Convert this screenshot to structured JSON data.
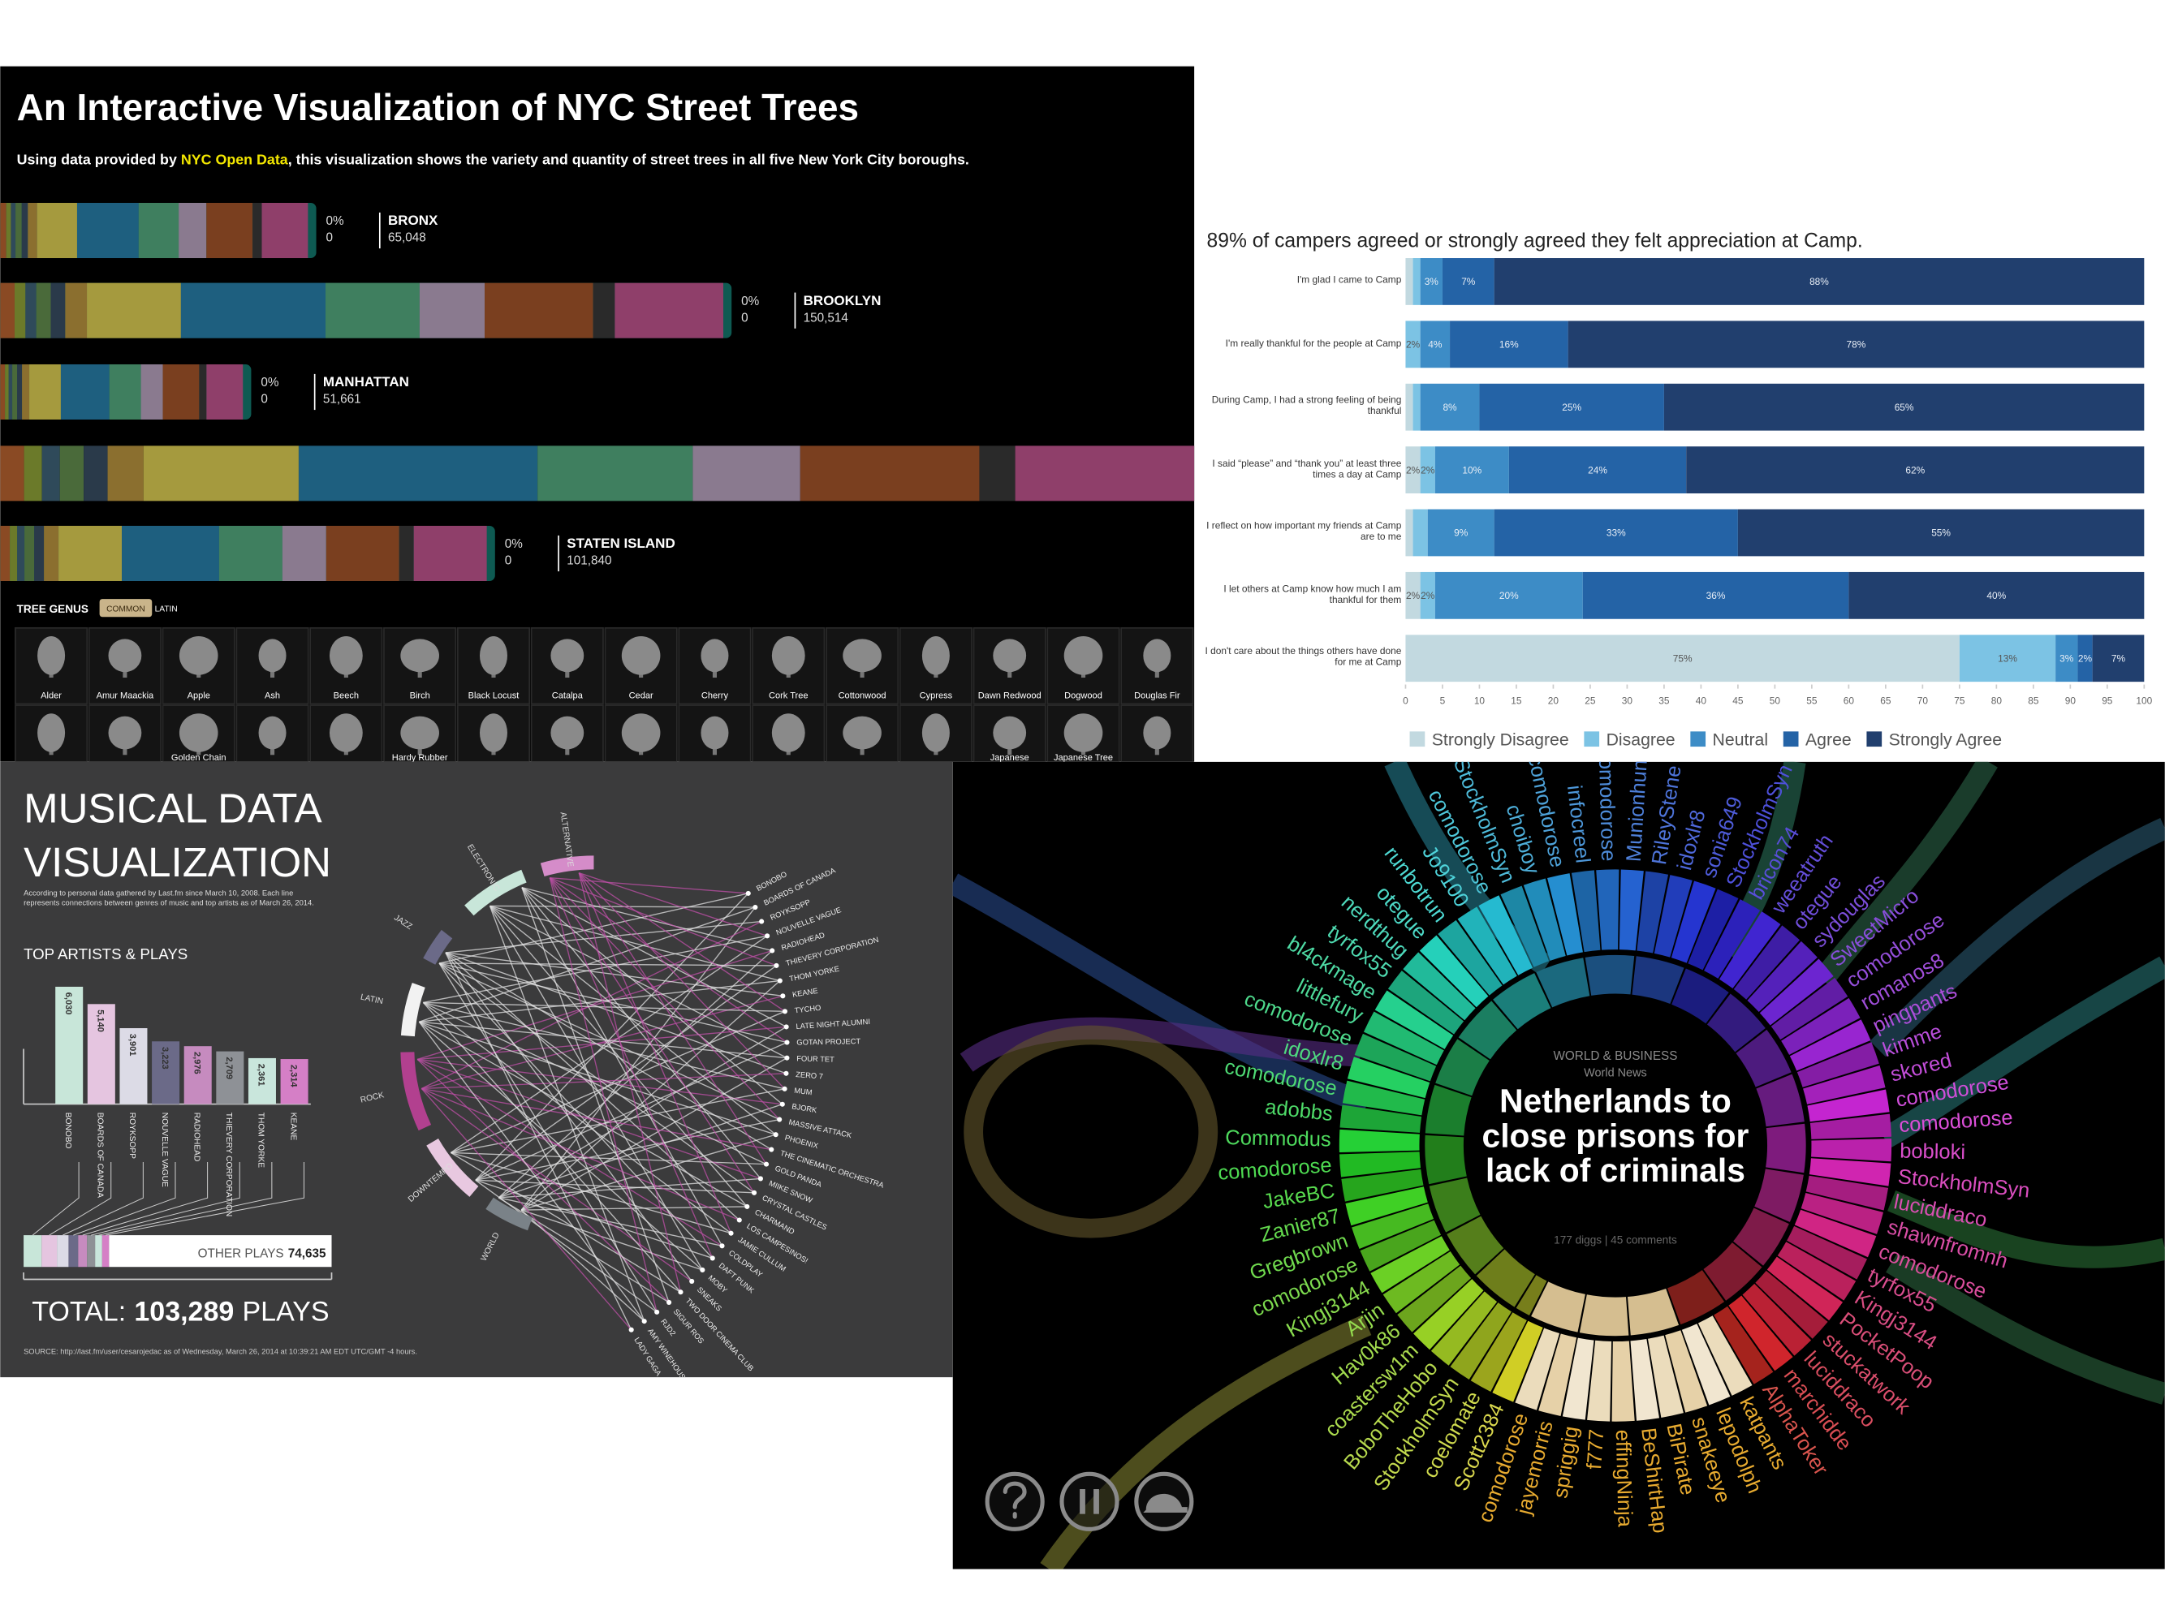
{
  "chart_data": [
    {
      "type": "bar",
      "title": "An Interactive Visualization of NYC Street Trees",
      "subtitle_before": "Using data provided by ",
      "subtitle_link": "NYC Open Data",
      "subtitle_after": ", this visualization shows the variety and quantity of street trees in all five New York City boroughs.",
      "categories": [
        "BRONX",
        "BROOKLYN",
        "MANHATTAN",
        null,
        "STATEN ISLAND"
      ],
      "values": [
        65048,
        150514,
        51661,
        null,
        101840
      ],
      "value_labels": [
        "65,048",
        "150,514",
        "51,661",
        null,
        "101,840"
      ],
      "selected_share": [
        0,
        0,
        0,
        null,
        0
      ],
      "selected_share_labels": [
        "0%",
        "0%",
        "0%",
        null,
        "0%"
      ],
      "selected_count": [
        0,
        0,
        0,
        null,
        0
      ],
      "legend_title": "TREE GENUS",
      "toggle": [
        "COMMON",
        "LATIN"
      ],
      "genera": [
        "Alder",
        "Amur Maackia",
        "Apple",
        "Ash",
        "Beech",
        "Birch",
        "Black Locust",
        "Catalpa",
        "Cedar",
        "Cherry",
        "Cork Tree",
        "Cottonwood",
        "Cypress",
        "Dawn Redwood",
        "Dogwood",
        "Douglas Fir"
      ],
      "genera_row2": [
        null,
        null,
        "Golden Chain",
        null,
        null,
        "Hardy Rubber",
        null,
        null,
        null,
        null,
        null,
        null,
        null,
        "Japanese",
        "Japanese Tree",
        null
      ]
    },
    {
      "type": "stacked-bar",
      "title": "89% of campers agreed or strongly agreed they felt appreciation at Camp.",
      "categories": [
        "I'm glad I came to Camp",
        "I'm really thankful for the people at Camp",
        "During Camp, I had a strong feeling of being thankful",
        "I said “please” and “thank you” at least three times a day at Camp",
        "I reflect on how important my friends at Camp are to me",
        "I let others at Camp know how much I am thankful for them",
        "I don't care about the things others have done for me at Camp"
      ],
      "series": [
        {
          "name": "Strongly Disagree",
          "color": "#c2d9e0",
          "values": [
            1,
            0,
            1,
            2,
            1,
            2,
            75
          ],
          "value_labels": [
            null,
            null,
            null,
            "2%",
            null,
            "2%",
            "75%"
          ]
        },
        {
          "name": "Disagree",
          "color": "#7cc3e4",
          "values": [
            1,
            2,
            1,
            2,
            2,
            2,
            13
          ],
          "value_labels": [
            null,
            "2%",
            null,
            "2%",
            null,
            "2%",
            "13%"
          ]
        },
        {
          "name": "Neutral",
          "color": "#3d8cc6",
          "values": [
            3,
            4,
            8,
            10,
            9,
            20,
            3
          ],
          "value_labels": [
            "3%",
            "4%",
            "8%",
            "10%",
            "9%",
            "20%",
            "3%"
          ]
        },
        {
          "name": "Agree",
          "color": "#2463a6",
          "values": [
            7,
            16,
            25,
            24,
            33,
            36,
            2
          ],
          "value_labels": [
            "7%",
            "16%",
            "25%",
            "24%",
            "33%",
            "36%",
            "2%"
          ]
        },
        {
          "name": "Strongly Agree",
          "color": "#213f6e",
          "values": [
            88,
            78,
            65,
            62,
            55,
            40,
            7
          ],
          "value_labels": [
            "88%",
            "78%",
            "65%",
            "62%",
            "55%",
            "40%",
            "7%"
          ]
        }
      ],
      "xlim": [
        0,
        100
      ],
      "xticks": [
        0,
        5,
        10,
        15,
        20,
        25,
        30,
        35,
        40,
        45,
        50,
        55,
        60,
        65,
        70,
        75,
        80,
        85,
        90,
        95,
        100
      ],
      "grid": false
    },
    {
      "type": "column",
      "title_lines": [
        "MUSICAL DATA",
        "VISUALIZATION"
      ],
      "note": "According to personal data gathered by Last.fm since March 10, 2008. Each line represents connections between genres of music and top artists as of March 26, 2014.",
      "subtitle": "TOP ARTISTS & PLAYS",
      "categories": [
        "BONOBO",
        "BOARDS OF CANADA",
        "ROYKSOPP",
        "NOUVELLE VAGUE",
        "RADIOHEAD",
        "THIEVERY CORPORATION",
        "THOM YORKE",
        "KEANE"
      ],
      "values": [
        6030,
        5140,
        3901,
        3223,
        2976,
        2709,
        2361,
        2314
      ],
      "value_labels": [
        "6,030",
        "5,140",
        "3,901",
        "3,223",
        "2,976",
        "2,709",
        "2,361",
        "2,314"
      ],
      "colors": [
        "#c8e6d9",
        "#e5c5e0",
        "#dcdbe6",
        "#6b6a88",
        "#c68bbf",
        "#8e9196",
        "#c9e6dc",
        "#d57fc6"
      ],
      "other_label": "OTHER PLAYS",
      "other_value": 74635,
      "other_value_label": "74,635",
      "total_prefix": "TOTAL:",
      "total_value": 103289,
      "total_value_label": "103,289",
      "total_suffix": "PLAYS",
      "source": "SOURCE: http://last.fm/user/cesarojedac as of Wednesday, March 26, 2014 at 10:39:21 AM EDT UTC/GMT -4 hours.",
      "genres": [
        {
          "name": "ALTERNATIVE",
          "color": "#d58cc9"
        },
        {
          "name": "ELECTRONIC",
          "color": "#c8e6d9"
        },
        {
          "name": "JAZZ",
          "color": "#6b6a88"
        },
        {
          "name": "LATIN",
          "color": "#f2f2f2"
        },
        {
          "name": "ROCK",
          "color": "#b2408f"
        },
        {
          "name": "DOWNTEMPO",
          "color": "#e8c8e0"
        },
        {
          "name": "WORLD",
          "color": "#7a8288"
        }
      ],
      "artists": [
        "BONOBO",
        "BOARDS OF CANADA",
        "ROYKSOPP",
        "NOUVELLE VAGUE",
        "RADIOHEAD",
        "THIEVERY CORPORATION",
        "THOM YORKE",
        "KEANE",
        "TYCHO",
        "LATE NIGHT ALUMNI",
        "GOTAN PROJECT",
        "FOUR TET",
        "ZERO 7",
        "MUM",
        "BJORK",
        "MASSIVE ATTACK",
        "PHOENIX",
        "THE CINEMATIC ORCHESTRA",
        "GOLD PANDA",
        "MIIKE SNOW",
        "CRYSTAL CASTLES",
        "CHARMAND",
        "LOS CAMPESINOS!",
        "JAMIE CULLUM",
        "COLDPLAY",
        "DAFT PUNK",
        "MOBY",
        "SNEAKS",
        "TWO DOOR CINEMA CLUB",
        "SIGUR ROS",
        "RJD2",
        "AMY WINEHOUSE",
        "LADY GAGA"
      ]
    }
  ],
  "digg": {
    "category": "WORLD & BUSINESS",
    "subcategory": "World News",
    "headline": "Netherlands to close prisons for lack of criminals",
    "stats": "177 diggs | 45 comments",
    "users": [
      "StockholmSyn",
      "BoboTheHobo",
      "coastersw1m",
      "Hav0k86",
      "Arjin",
      "Kingj3144",
      "comodorose",
      "Gregbrown",
      "Zanier87",
      "JakeBC",
      "comodorose",
      "Commodus",
      "adobbs",
      "comodorose",
      "idoxlr8",
      "comodorose",
      "littlefury",
      "bl4ckmage",
      "tyrfox55",
      "nerdthug",
      "otegue",
      "runbotrun",
      "Jo9100",
      "comodorose",
      "StockholmSyn",
      "choiboy",
      "comodorose",
      "infocreel",
      "comodorose",
      "Munionhun",
      "RileyStene",
      "idoxlr8",
      "sonia649",
      "StockholmSyn",
      "bricon74",
      "weeatruth",
      "otegue",
      "sydouglas",
      "SweetMicro",
      "comodorose",
      "romanos8",
      "pingpants",
      "kimme",
      "skored",
      "comodorose",
      "comodorose",
      "bobloki",
      "StockholmSyn",
      "luciddraco",
      "shawnfromnh",
      "comodorose",
      "tyrfox55",
      "Kingj3144",
      "PocketPoop",
      "stuckatwork",
      "luciddraco",
      "marchidde",
      "AlphaToker",
      "katpants",
      "lepodolph",
      "snakeeye",
      "BiPirate",
      "BeShirtHap",
      "effingNinja",
      "f777",
      "spriggig",
      "jayemorris",
      "comodorose",
      "Scott2384",
      "coelomate"
    ]
  }
}
